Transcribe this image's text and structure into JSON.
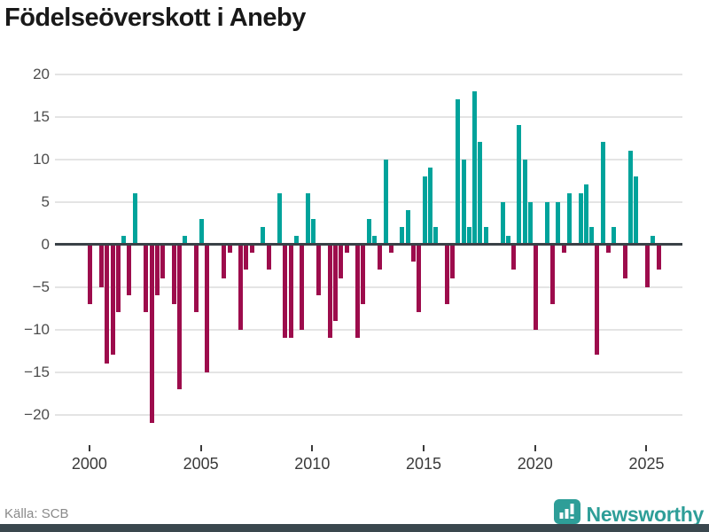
{
  "title": "Födelseöverskott i Aneby",
  "footer": {
    "source": "Källa: SCB",
    "brand": "Newsworthy"
  },
  "chart_data": {
    "type": "bar",
    "title": "Födelseöverskott i Aneby",
    "frequency": "quarterly",
    "start": "2000Q1",
    "end": "2025Q3",
    "xlabel": "",
    "ylabel": "",
    "ylim": [
      -22,
      20
    ],
    "grid": true,
    "y_ticks": [
      20,
      15,
      10,
      5,
      0,
      -5,
      -10,
      -15,
      -20
    ],
    "x_tick_labels": [
      "2000",
      "2005",
      "2010",
      "2015",
      "2020",
      "2025"
    ],
    "colors": {
      "positive": "#00a39b",
      "negative": "#9d0c4c"
    },
    "series": [
      {
        "year": 2000,
        "values": [
          -7,
          0,
          -5,
          -14
        ]
      },
      {
        "year": 2001,
        "values": [
          -13,
          -8,
          1,
          -6
        ]
      },
      {
        "year": 2002,
        "values": [
          6,
          0,
          -8,
          -21
        ]
      },
      {
        "year": 2003,
        "values": [
          -6,
          -4,
          0,
          -7
        ]
      },
      {
        "year": 2004,
        "values": [
          -17,
          1,
          0,
          -8
        ]
      },
      {
        "year": 2005,
        "values": [
          3,
          -15,
          0,
          0
        ]
      },
      {
        "year": 2006,
        "values": [
          -4,
          -1,
          0,
          -10
        ]
      },
      {
        "year": 2007,
        "values": [
          -3,
          -1,
          0,
          2
        ]
      },
      {
        "year": 2008,
        "values": [
          -3,
          0,
          6,
          -11
        ]
      },
      {
        "year": 2009,
        "values": [
          -11,
          1,
          -10,
          6
        ]
      },
      {
        "year": 2010,
        "values": [
          3,
          -6,
          0,
          -11
        ]
      },
      {
        "year": 2011,
        "values": [
          -9,
          -4,
          -1,
          0
        ]
      },
      {
        "year": 2012,
        "values": [
          -11,
          -7,
          3,
          1
        ]
      },
      {
        "year": 2013,
        "values": [
          -3,
          10,
          -1,
          0
        ]
      },
      {
        "year": 2014,
        "values": [
          2,
          4,
          -2,
          -8
        ]
      },
      {
        "year": 2015,
        "values": [
          8,
          9,
          2,
          0
        ]
      },
      {
        "year": 2016,
        "values": [
          -7,
          -4,
          17,
          10
        ]
      },
      {
        "year": 2017,
        "values": [
          2,
          18,
          12,
          2
        ]
      },
      {
        "year": 2018,
        "values": [
          0,
          0,
          5,
          1
        ]
      },
      {
        "year": 2019,
        "values": [
          -3,
          14,
          10,
          5
        ]
      },
      {
        "year": 2020,
        "values": [
          -10,
          0,
          5,
          -7
        ]
      },
      {
        "year": 2021,
        "values": [
          5,
          -1,
          6,
          0
        ]
      },
      {
        "year": 2022,
        "values": [
          6,
          7,
          2,
          -13
        ]
      },
      {
        "year": 2023,
        "values": [
          12,
          -1,
          2,
          0
        ]
      },
      {
        "year": 2024,
        "values": [
          -4,
          11,
          8,
          0
        ]
      },
      {
        "year": 2025,
        "values": [
          -5,
          1,
          -3
        ]
      }
    ]
  }
}
